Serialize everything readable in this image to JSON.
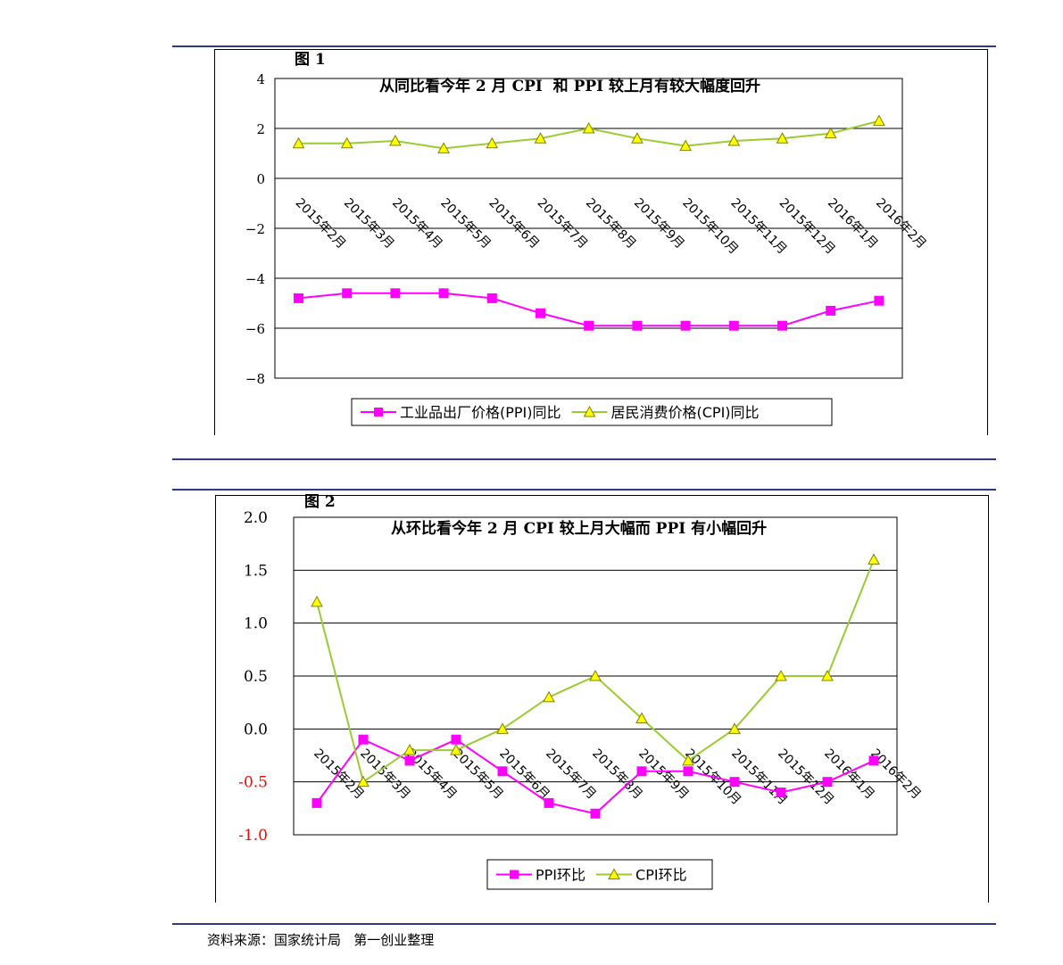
{
  "figures": [
    {
      "number": "图 1",
      "title": "从同比看今年 2 月 CPI  和 PPI 较上月有较大幅度回升"
    },
    {
      "number": "图 2",
      "title": "从环比看今年 2 月 CPI 较上月大幅而 PPI 有小幅回升"
    }
  ],
  "source_note": "资料来源：国家统计局   第一创业整理",
  "chart_data": [
    {
      "type": "line",
      "categories": [
        "2015年2月",
        "2015年3月",
        "2015年4月",
        "2015年5月",
        "2015年6月",
        "2015年7月",
        "2015年8月",
        "2015年9月",
        "2015年10月",
        "2015年11月",
        "2015年12月",
        "2016年1月",
        "2016年2月"
      ],
      "series": [
        {
          "name": "工业品出厂价格(PPI)同比",
          "color": "#ff00ff",
          "marker": "square",
          "values": [
            -4.8,
            -4.6,
            -4.6,
            -4.6,
            -4.8,
            -5.4,
            -5.9,
            -5.9,
            -5.9,
            -5.9,
            -5.9,
            -5.3,
            -4.9
          ]
        },
        {
          "name": "居民消费价格(CPI)同比",
          "color": "#99cc33",
          "marker": "triangle",
          "values": [
            1.4,
            1.4,
            1.5,
            1.2,
            1.4,
            1.6,
            2.0,
            1.6,
            1.3,
            1.5,
            1.6,
            1.8,
            2.3
          ]
        }
      ],
      "yticks": [
        "4",
        "2",
        "0",
        "−2",
        "−4",
        "−6",
        "−8"
      ],
      "ylim": [
        -8,
        4
      ],
      "grid": true,
      "legend": "bottom"
    },
    {
      "type": "line",
      "categories": [
        "2015年2月",
        "2015年3月",
        "2015年4月",
        "2015年5月",
        "2015年6月",
        "2015年7月",
        "2015年8月",
        "2015年9月",
        "2015年10月",
        "2015年11月",
        "2015年12月",
        "2016年1月",
        "2016年2月"
      ],
      "series": [
        {
          "name": "PPI环比",
          "color": "#ff00ff",
          "marker": "square",
          "values": [
            -0.7,
            -0.1,
            -0.3,
            -0.1,
            -0.4,
            -0.7,
            -0.8,
            -0.4,
            -0.4,
            -0.5,
            -0.6,
            -0.5,
            -0.3
          ]
        },
        {
          "name": "CPI环比",
          "color": "#99cc33",
          "marker": "triangle",
          "values": [
            1.2,
            -0.5,
            -0.2,
            -0.2,
            0.0,
            0.3,
            0.5,
            0.1,
            -0.3,
            0.0,
            0.5,
            0.5,
            1.6
          ]
        }
      ],
      "yticks": [
        "2.0",
        "1.5",
        "1.0",
        "0.5",
        "0.0",
        "-0.5",
        "-1.0"
      ],
      "negative_tick_color": "#ff0000",
      "ylim": [
        -1.0,
        2.0
      ],
      "grid": true,
      "legend": "bottom"
    }
  ]
}
